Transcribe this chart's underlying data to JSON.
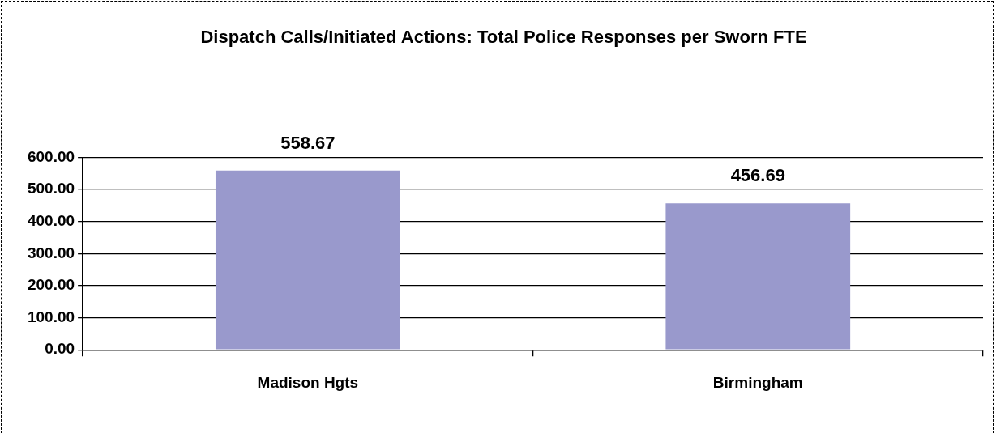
{
  "chart_data": {
    "type": "bar",
    "title": "Dispatch Calls/Initiated Actions: Total Police Responses per Sworn FTE",
    "categories": [
      "Madison Hgts",
      "Birmingham"
    ],
    "values": [
      558.67,
      456.69
    ],
    "color": "#9999cc",
    "ylim": [
      0,
      600
    ],
    "yticks": [
      {
        "value": 0,
        "label": "0.00"
      },
      {
        "value": 100,
        "label": "100.00"
      },
      {
        "value": 200,
        "label": "200.00"
      },
      {
        "value": 300,
        "label": "300.00"
      },
      {
        "value": 400,
        "label": "400.00"
      },
      {
        "value": 500,
        "label": "500.00"
      },
      {
        "value": 600,
        "label": "600.00"
      }
    ],
    "grid": "y",
    "legend": false,
    "data_labels": true
  }
}
